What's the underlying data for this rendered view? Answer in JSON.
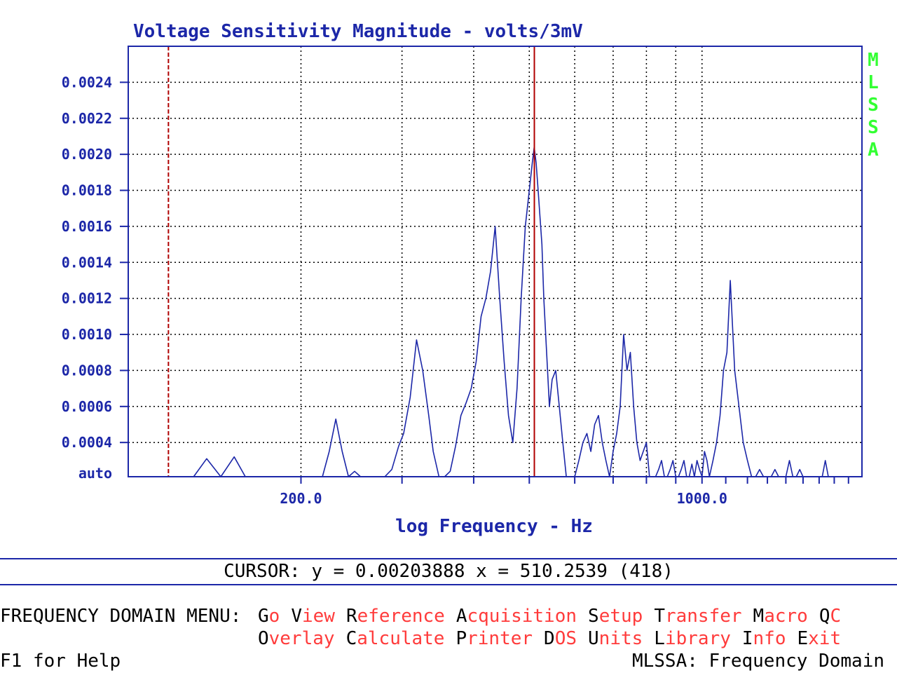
{
  "chart_title": "Voltage Sensitivity Magnitude - volts/3mV",
  "vendor_vertical": [
    "M",
    "L",
    "S",
    "S",
    "A"
  ],
  "xlabel": "log Frequency - Hz",
  "cursor_text": "CURSOR: y = 0.00203888 x = 510.2539 (418)",
  "menu": {
    "title": "FREQUENCY DOMAIN MENU:",
    "row1": [
      {
        "hot": "G",
        "rest": "o"
      },
      {
        "hot": "V",
        "rest": "iew"
      },
      {
        "hot": "R",
        "rest": "eference"
      },
      {
        "hot": "A",
        "rest": "cquisition"
      },
      {
        "hot": "S",
        "rest": "etup"
      },
      {
        "hot": "T",
        "rest": "ransfer"
      },
      {
        "hot": "M",
        "rest": "acro"
      },
      {
        "hot": "Q",
        "rest": "C"
      }
    ],
    "row2": [
      {
        "hot": "O",
        "rest": "verlay"
      },
      {
        "hot": "C",
        "rest": "alculate"
      },
      {
        "hot": "P",
        "rest": "rinter"
      },
      {
        "hot": "D",
        "rest": "OS"
      },
      {
        "hot": "U",
        "rest": "nits"
      },
      {
        "hot": "L",
        "rest": "ibrary"
      },
      {
        "hot": "I",
        "rest": "nfo"
      },
      {
        "hot": "E",
        "rest": "xit"
      }
    ]
  },
  "footer": {
    "help": "F1 for Help",
    "mode": "MLSSA: Frequency Domain"
  },
  "colors": {
    "trace": "#1c27a8",
    "grid": "#000000",
    "cursor": "#b00000",
    "vendor": "#33ff33",
    "menu_rest": "#ff3b3b"
  },
  "chart_data": {
    "type": "line",
    "title": "Voltage Sensitivity Magnitude - volts/3mV",
    "xlabel": "log Frequency - Hz",
    "ylabel": "",
    "x_scale": "log",
    "xlim": [
      100,
      1900
    ],
    "ylim": [
      0.00021,
      0.0026
    ],
    "grid": true,
    "y_tick_values": [
      0.0004,
      0.0006,
      0.0008,
      0.001,
      0.0012,
      0.0014,
      0.0016,
      0.0018,
      0.002,
      0.0022,
      0.0024
    ],
    "y_tick_labels": [
      "0.0004",
      "0.0006",
      "0.0008",
      "0.0010",
      "0.0012",
      "0.0014",
      "0.0016",
      "0.0018",
      "0.0020",
      "0.0022",
      "0.0024"
    ],
    "y_bottom_label": "auto",
    "x_tick_values": [
      200,
      1000
    ],
    "x_tick_labels": [
      "200.0",
      "1000.0"
    ],
    "x_grid_values": [
      200,
      300,
      400,
      500,
      600,
      700,
      800,
      900,
      1000,
      2000,
      3000,
      4000,
      5000,
      6000
    ],
    "cursor_lines": [
      {
        "x": 117.5,
        "style": "dashed"
      },
      {
        "x": 510.25,
        "style": "solid"
      }
    ],
    "series": [
      {
        "x": [
          130,
          137,
          145,
          153,
          160,
          168,
          176,
          184,
          192,
          200,
          210,
          218,
          224,
          230,
          236,
          242,
          248,
          254,
          260,
          266,
          272,
          280,
          288,
          296,
          302,
          310,
          318,
          326,
          334,
          340,
          348,
          356,
          364,
          372,
          380,
          388,
          396,
          404,
          412,
          420,
          428,
          436,
          444,
          452,
          460,
          468,
          476,
          484,
          492,
          500,
          506,
          510,
          514,
          518,
          522,
          526,
          530,
          536,
          542,
          548,
          556,
          564,
          572,
          580,
          590,
          600,
          610,
          620,
          630,
          640,
          650,
          660,
          670,
          680,
          690,
          700,
          710,
          720,
          730,
          740,
          750,
          760,
          770,
          780,
          790,
          800,
          810,
          820,
          830,
          840,
          850,
          860,
          870,
          880,
          890,
          900,
          910,
          920,
          930,
          940,
          950,
          960,
          970,
          980,
          990,
          1000,
          1010,
          1020,
          1030,
          1045,
          1060,
          1075,
          1090,
          1105,
          1120,
          1140,
          1160,
          1180,
          1200,
          1220,
          1240,
          1260,
          1280,
          1300,
          1320,
          1340,
          1360,
          1380,
          1400,
          1420,
          1440,
          1460,
          1480,
          1500,
          1520,
          1540,
          1560,
          1580,
          1600,
          1620,
          1640,
          1660,
          1680,
          1700,
          1720,
          1740,
          1760,
          1780,
          1800,
          1820,
          1840,
          1860,
          1880,
          1900
        ],
        "y": [
          0.00021,
          0.00031,
          0.00021,
          0.00032,
          0.00021,
          0.00021,
          0.00021,
          0.00021,
          0.00021,
          0.00021,
          0.00021,
          0.00021,
          0.00035,
          0.00053,
          0.00035,
          0.00021,
          0.00024,
          0.00021,
          0.00021,
          0.00021,
          0.00021,
          0.00021,
          0.00025,
          0.00038,
          0.00045,
          0.00065,
          0.00097,
          0.0008,
          0.00055,
          0.00035,
          0.00021,
          0.00021,
          0.00024,
          0.00038,
          0.00055,
          0.00062,
          0.0007,
          0.00085,
          0.0011,
          0.0012,
          0.00135,
          0.0016,
          0.0012,
          0.00085,
          0.00055,
          0.0004,
          0.0007,
          0.0012,
          0.0016,
          0.0018,
          0.00195,
          0.00204,
          0.00195,
          0.0018,
          0.00165,
          0.0015,
          0.0012,
          0.0009,
          0.0006,
          0.00075,
          0.0008,
          0.0006,
          0.0004,
          0.00021,
          0.00021,
          0.00021,
          0.0003,
          0.0004,
          0.00045,
          0.00035,
          0.0005,
          0.00055,
          0.0004,
          0.0003,
          0.00021,
          0.00035,
          0.00045,
          0.0006,
          0.001,
          0.0008,
          0.0009,
          0.0006,
          0.0004,
          0.0003,
          0.00035,
          0.0004,
          0.00021,
          0.00021,
          0.00021,
          0.00025,
          0.0003,
          0.00021,
          0.00021,
          0.00025,
          0.0003,
          0.00021,
          0.00021,
          0.00025,
          0.0003,
          0.00021,
          0.00021,
          0.00028,
          0.00021,
          0.0003,
          0.00025,
          0.00021,
          0.00035,
          0.0003,
          0.00021,
          0.0003,
          0.0004,
          0.00055,
          0.0008,
          0.0009,
          0.0013,
          0.0008,
          0.0006,
          0.0004,
          0.0003,
          0.00021,
          0.00021,
          0.00025,
          0.00021,
          0.00021,
          0.00021,
          0.00025,
          0.00021,
          0.00021,
          0.00021,
          0.0003,
          0.00021,
          0.00021,
          0.00025,
          0.00021,
          0.00021,
          0.00021,
          0.00021,
          0.00021,
          0.00021,
          0.00021,
          0.0003,
          0.00021,
          0.00021,
          0.00021,
          0.00021,
          0.00021,
          0.00021,
          0.00021,
          0.00021,
          0.00021,
          0.00021,
          0.00021,
          0.00021,
          0.00021
        ]
      }
    ]
  }
}
